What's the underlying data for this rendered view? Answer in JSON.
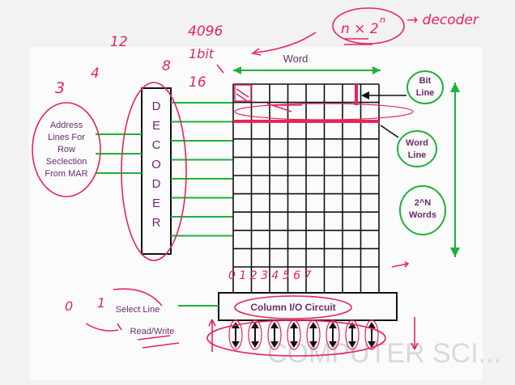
{
  "slide": {
    "decoder_letters": [
      "D",
      "E",
      "C",
      "O",
      "D",
      "E",
      "R"
    ],
    "address_label_lines": [
      "Address",
      "Lines For",
      "Row",
      "Seclection",
      "From MAR"
    ],
    "word_label": "Word",
    "bit_line_label": [
      "Bit",
      "Line"
    ],
    "word_line_label": [
      "Word",
      "Line"
    ],
    "words_label": [
      "2^N",
      "Words"
    ],
    "column_io_label": "Column I/O Circuit",
    "select_line_label": "Select Line",
    "read_write_label": "Read/Write"
  },
  "annotations": {
    "formula_base": "n × 2",
    "formula_exp": "n",
    "decoder_word": "→ decoder",
    "count_4096": "4096",
    "bits_1": "1bit",
    "n12": "12",
    "n4": "4",
    "n8": "8",
    "n16": "16",
    "n3": "3",
    "n0": "0",
    "n1": "1",
    "column_numbers": "0 1 2 3 4 5 6 7"
  },
  "colors": {
    "green": "#1fb03a",
    "annotation_red": "#e8245a",
    "label_purple": "#6a2c6e",
    "grid": "#111111",
    "background": "#f2f2f2"
  },
  "watermark": "COMPUTER SCI..."
}
